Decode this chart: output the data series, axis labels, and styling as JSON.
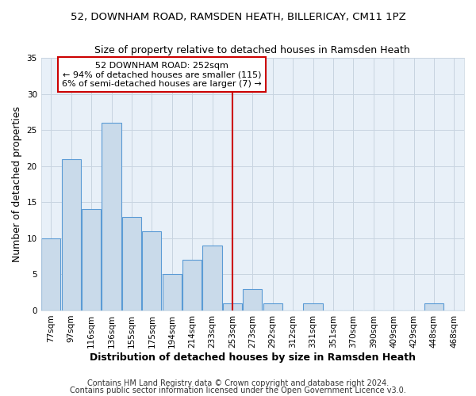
{
  "title1": "52, DOWNHAM ROAD, RAMSDEN HEATH, BILLERICAY, CM11 1PZ",
  "title2": "Size of property relative to detached houses in Ramsden Heath",
  "xlabel": "Distribution of detached houses by size in Ramsden Heath",
  "ylabel": "Number of detached properties",
  "categories": [
    "77sqm",
    "97sqm",
    "116sqm",
    "136sqm",
    "155sqm",
    "175sqm",
    "194sqm",
    "214sqm",
    "233sqm",
    "253sqm",
    "273sqm",
    "292sqm",
    "312sqm",
    "331sqm",
    "351sqm",
    "370sqm",
    "390sqm",
    "409sqm",
    "429sqm",
    "448sqm",
    "468sqm"
  ],
  "values": [
    10,
    21,
    14,
    26,
    13,
    11,
    5,
    7,
    9,
    1,
    3,
    1,
    0,
    1,
    0,
    0,
    0,
    0,
    0,
    1,
    0
  ],
  "bar_color": "#c9daea",
  "bar_edge_color": "#5b9bd5",
  "vline_index": 9,
  "annotation_text": "52 DOWNHAM ROAD: 252sqm\n← 94% of detached houses are smaller (115)\n6% of semi-detached houses are larger (7) →",
  "annotation_box_color": "#ffffff",
  "annotation_box_edge_color": "#cc0000",
  "vline_color": "#cc0000",
  "ylim": [
    0,
    35
  ],
  "yticks": [
    0,
    5,
    10,
    15,
    20,
    25,
    30,
    35
  ],
  "footer1": "Contains HM Land Registry data © Crown copyright and database right 2024.",
  "footer2": "Contains public sector information licensed under the Open Government Licence v3.0.",
  "bg_color": "#ffffff",
  "plot_bg_color": "#e8f0f8",
  "grid_color": "#c8d4e0",
  "title1_fontsize": 9.5,
  "title2_fontsize": 9,
  "axis_label_fontsize": 9,
  "tick_fontsize": 7.5,
  "annotation_fontsize": 8,
  "footer_fontsize": 7
}
